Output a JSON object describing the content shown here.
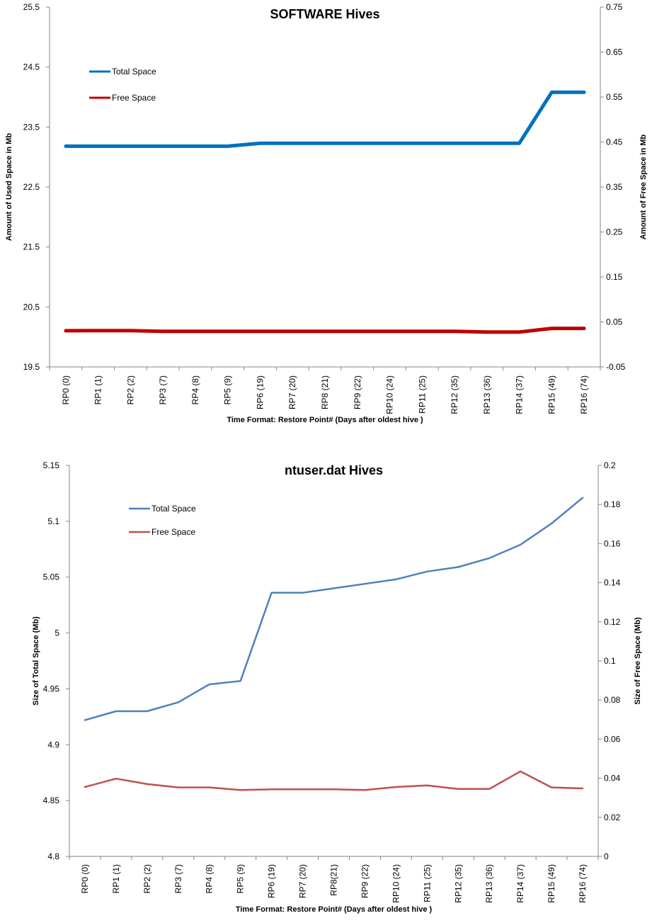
{
  "chart_data": [
    {
      "type": "line",
      "title": "SOFTWARE Hives",
      "xlabel": "Time Format: Restore Point# (Days after oldest hive )",
      "ylabel": "Amount of Used Space  in Mb",
      "y2label": "Amount of Free Space in Mb",
      "categories": [
        "RP0 (0)",
        "RP1 (1)",
        "RP2 (2)",
        "RP3 (7)",
        "RP4 (8)",
        "RP5 (9)",
        "RP6 (19)",
        "RP7 (20)",
        "RP8 (21)",
        "RP9 (22)",
        "RP10 (24)",
        "RP11 (25)",
        "RP12 (35)",
        "RP13 (36)",
        "RP14 (37)",
        "RP15 (49)",
        "RP16 (74)"
      ],
      "ylim": [
        19.5,
        25.5
      ],
      "yticks": [
        "19.5",
        "20.5",
        "21.5",
        "22.5",
        "23.5",
        "24.5",
        "25.5"
      ],
      "y2lim": [
        -0.05,
        0.75
      ],
      "y2ticks": [
        "-0.05",
        "0.05",
        "0.15",
        "0.25",
        "0.35",
        "0.45",
        "0.55",
        "0.65",
        "0.75"
      ],
      "legend_position": "top-left",
      "grid": false,
      "series": [
        {
          "name": "Total Space",
          "axis": "left",
          "color": "#0070C0",
          "values": [
            23.18,
            23.18,
            23.18,
            23.18,
            23.18,
            23.18,
            23.23,
            23.23,
            23.23,
            23.23,
            23.23,
            23.23,
            23.23,
            23.23,
            23.23,
            24.08,
            24.08
          ]
        },
        {
          "name": "Free Space",
          "axis": "right",
          "color": "#C00000",
          "values": [
            0.0305,
            0.0308,
            0.0306,
            0.029,
            0.029,
            0.029,
            0.029,
            0.029,
            0.029,
            0.029,
            0.029,
            0.029,
            0.029,
            0.0276,
            0.0276,
            0.0356,
            0.0356
          ]
        }
      ]
    },
    {
      "type": "line",
      "title": "ntuser.dat Hives",
      "xlabel": "Time Format: Restore Point# (Days  after oldest hive )",
      "ylabel": "Size of Total Space  (Mb)",
      "y2label": "Size of Free Space  (Mb)",
      "categories": [
        "RP0 (0)",
        "RP1 (1)",
        "RP2 (2)",
        "RP3 (7)",
        "RP4 (8)",
        "RP5 (9)",
        "RP6 (19)",
        "RP7 (20)",
        "RP8(21)",
        "RP9 (22)",
        "RP10 (24)",
        "RP11 (25)",
        "RP12 (35)",
        "RP13 (36)",
        "RP14 (37)",
        "RP15 (49)",
        "RP16 (74)"
      ],
      "ylim": [
        4.8,
        5.15
      ],
      "yticks": [
        "4.8",
        "4.85",
        "4.9",
        "4.95",
        "5",
        "5.05",
        "5.1",
        "5.15"
      ],
      "y2lim": [
        0,
        0.2
      ],
      "y2ticks": [
        "0",
        "0.02",
        "0.04",
        "0.06",
        "0.08",
        "0.1",
        "0.12",
        "0.14",
        "0.16",
        "0.18",
        "0.2"
      ],
      "legend_position": "top-left",
      "grid": false,
      "series": [
        {
          "name": "Total Space",
          "axis": "left",
          "color": "#4F81BD",
          "values": [
            4.922,
            4.93,
            4.93,
            4.938,
            4.954,
            4.957,
            5.036,
            5.036,
            5.04,
            5.044,
            5.048,
            5.055,
            5.059,
            5.067,
            5.079,
            5.098,
            5.121
          ]
        },
        {
          "name": "Free Space",
          "axis": "right",
          "color": "#C0504D",
          "values": [
            0.0355,
            0.0398,
            0.037,
            0.0353,
            0.0353,
            0.034,
            0.0343,
            0.0343,
            0.0343,
            0.034,
            0.0355,
            0.0363,
            0.0345,
            0.0345,
            0.0435,
            0.0353,
            0.0348
          ]
        }
      ]
    }
  ]
}
